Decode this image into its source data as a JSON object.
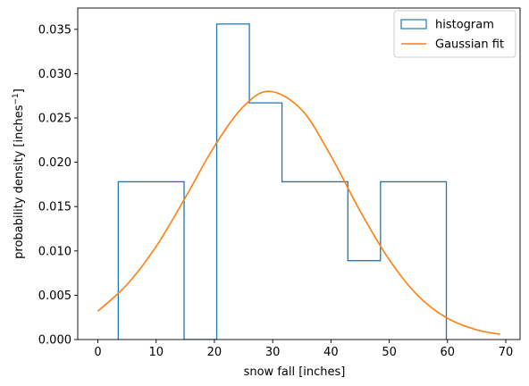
{
  "chart_data": {
    "type": "histogram",
    "xlabel": "snow fall [inches]",
    "ylabel_main": "probability density [inches",
    "ylabel_sup": "−1",
    "ylabel_close": "]",
    "xlim": [
      -3.45,
      72.45
    ],
    "ylim": [
      0,
      0.0374
    ],
    "x_ticks": [
      {
        "value": 0,
        "label": "0"
      },
      {
        "value": 10,
        "label": "10"
      },
      {
        "value": 20,
        "label": "20"
      },
      {
        "value": 30,
        "label": "30"
      },
      {
        "value": 40,
        "label": "40"
      },
      {
        "value": 50,
        "label": "50"
      },
      {
        "value": 60,
        "label": "60"
      },
      {
        "value": 70,
        "label": "70"
      }
    ],
    "y_ticks": [
      {
        "value": 0.0,
        "label": "0.000"
      },
      {
        "value": 0.005,
        "label": "0.005"
      },
      {
        "value": 0.01,
        "label": "0.010"
      },
      {
        "value": 0.015,
        "label": "0.015"
      },
      {
        "value": 0.02,
        "label": "0.020"
      },
      {
        "value": 0.025,
        "label": "0.025"
      },
      {
        "value": 0.03,
        "label": "0.030"
      },
      {
        "value": 0.035,
        "label": "0.035"
      }
    ],
    "histogram": {
      "name": "histogram",
      "color": "#1f77b4",
      "bin_edges": [
        3.5,
        14.8,
        20.4,
        26.0,
        31.6,
        42.9,
        48.5,
        59.8
      ],
      "densities": [
        0.0178,
        0.0,
        0.0356,
        0.0267,
        0.0178,
        0.0089,
        0.0178
      ]
    },
    "gaussian_fit": {
      "name": "Gaussian fit",
      "color": "#ff7f0e",
      "x": [
        0,
        5,
        10,
        15,
        20,
        25,
        29.5,
        35,
        40,
        45,
        50,
        55,
        60,
        65,
        69
      ],
      "y": [
        0.0032,
        0.0062,
        0.0105,
        0.016,
        0.0218,
        0.0263,
        0.028,
        0.0259,
        0.0207,
        0.0145,
        0.009,
        0.0049,
        0.0024,
        0.0011,
        0.0006
      ]
    },
    "legend": {
      "position": "upper right",
      "entries": [
        {
          "label": "histogram",
          "kind": "box",
          "color": "#1f77b4"
        },
        {
          "label": "Gaussian fit",
          "kind": "line",
          "color": "#ff7f0e"
        }
      ]
    },
    "grid": false
  }
}
